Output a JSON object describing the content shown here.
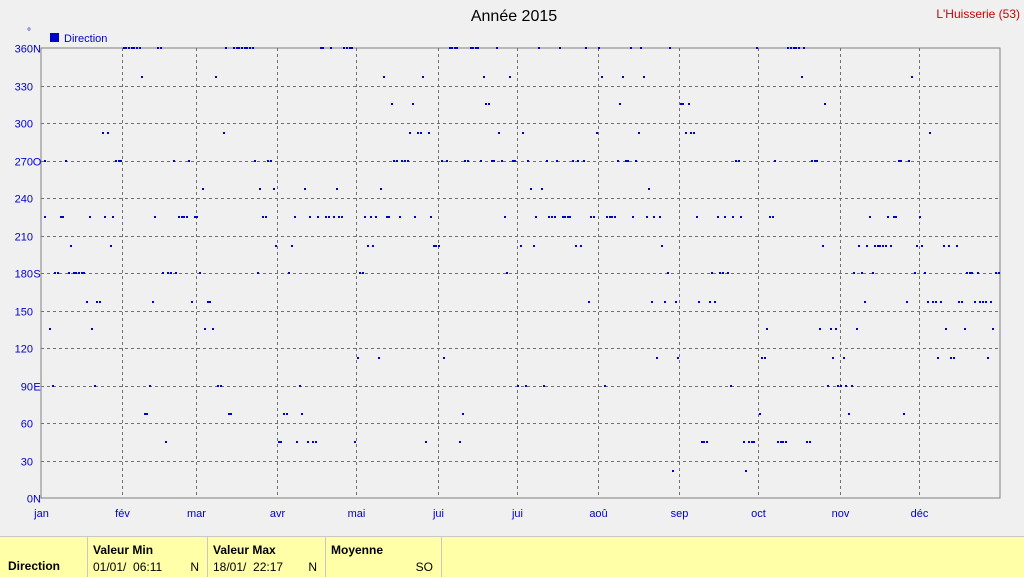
{
  "chart_data": {
    "type": "scatter",
    "title": "Année 2015",
    "station": "L'Huisserie (53)",
    "ylabel_unit": "°",
    "legend": "Direction",
    "legend_position": "top-left",
    "grid": true,
    "ylim": [
      0,
      360
    ],
    "yticks": [
      {
        "v": 0,
        "label": "0",
        "dir": "N"
      },
      {
        "v": 30,
        "label": "30",
        "dir": ""
      },
      {
        "v": 60,
        "label": "60",
        "dir": ""
      },
      {
        "v": 90,
        "label": "90",
        "dir": "E"
      },
      {
        "v": 120,
        "label": "120",
        "dir": ""
      },
      {
        "v": 150,
        "label": "150",
        "dir": ""
      },
      {
        "v": 180,
        "label": "180",
        "dir": "S"
      },
      {
        "v": 210,
        "label": "210",
        "dir": ""
      },
      {
        "v": 240,
        "label": "240",
        "dir": ""
      },
      {
        "v": 270,
        "label": "270",
        "dir": "O"
      },
      {
        "v": 300,
        "label": "300",
        "dir": ""
      },
      {
        "v": 330,
        "label": "330",
        "dir": ""
      },
      {
        "v": 360,
        "label": "360",
        "dir": "N"
      }
    ],
    "xlim_days": [
      0,
      365
    ],
    "months": [
      "jan",
      "fév",
      "mar",
      "avr",
      "mai",
      "juin",
      "juil",
      "aoû",
      "sep",
      "oct",
      "nov",
      "déc"
    ],
    "month_start_days": [
      0,
      31,
      59,
      90,
      120,
      151,
      181,
      212,
      243,
      273,
      304,
      334
    ],
    "month_labels_shown": [
      "jan",
      "fév",
      "mar",
      "avr",
      "mai",
      "jui",
      "jui",
      "aoû",
      "sep",
      "oct",
      "nov",
      "déc"
    ],
    "color": "#0000cc",
    "points": [
      [
        1,
        225
      ],
      [
        1,
        270
      ],
      [
        3,
        135
      ],
      [
        4,
        90
      ],
      [
        5,
        180
      ],
      [
        6,
        180
      ],
      [
        7,
        225
      ],
      [
        8,
        225
      ],
      [
        9,
        270
      ],
      [
        10,
        180
      ],
      [
        11,
        202
      ],
      [
        12,
        180
      ],
      [
        13,
        180
      ],
      [
        14,
        180
      ],
      [
        15,
        180
      ],
      [
        16,
        180
      ],
      [
        17,
        157
      ],
      [
        18,
        225
      ],
      [
        19,
        135
      ],
      [
        20,
        90
      ],
      [
        21,
        157
      ],
      [
        22,
        157
      ],
      [
        23,
        292
      ],
      [
        24,
        225
      ],
      [
        25,
        292
      ],
      [
        26,
        202
      ],
      [
        27,
        225
      ],
      [
        28,
        270
      ],
      [
        29,
        270
      ],
      [
        30,
        270
      ],
      [
        31,
        360
      ],
      [
        32,
        360
      ],
      [
        33,
        360
      ],
      [
        34,
        360
      ],
      [
        35,
        360
      ],
      [
        36,
        360
      ],
      [
        37,
        360
      ],
      [
        38,
        337
      ],
      [
        39,
        67
      ],
      [
        40,
        67
      ],
      [
        41,
        90
      ],
      [
        42,
        157
      ],
      [
        43,
        225
      ],
      [
        44,
        360
      ],
      [
        45,
        360
      ],
      [
        46,
        180
      ],
      [
        47,
        45
      ],
      [
        48,
        180
      ],
      [
        49,
        180
      ],
      [
        50,
        270
      ],
      [
        51,
        180
      ],
      [
        52,
        225
      ],
      [
        53,
        225
      ],
      [
        54,
        225
      ],
      [
        55,
        225
      ],
      [
        56,
        270
      ],
      [
        57,
        157
      ],
      [
        58,
        225
      ],
      [
        59,
        225
      ],
      [
        60,
        180
      ],
      [
        61,
        247
      ],
      [
        62,
        135
      ],
      [
        63,
        157
      ],
      [
        64,
        157
      ],
      [
        65,
        135
      ],
      [
        66,
        337
      ],
      [
        67,
        90
      ],
      [
        68,
        90
      ],
      [
        69,
        292
      ],
      [
        70,
        360
      ],
      [
        71,
        67
      ],
      [
        72,
        67
      ],
      [
        73,
        360
      ],
      [
        74,
        360
      ],
      [
        75,
        360
      ],
      [
        76,
        360
      ],
      [
        77,
        360
      ],
      [
        78,
        360
      ],
      [
        79,
        360
      ],
      [
        80,
        360
      ],
      [
        81,
        270
      ],
      [
        82,
        180
      ],
      [
        83,
        247
      ],
      [
        84,
        225
      ],
      [
        85,
        225
      ],
      [
        86,
        270
      ],
      [
        87,
        270
      ],
      [
        88,
        247
      ],
      [
        89,
        202
      ],
      [
        90,
        45
      ],
      [
        91,
        45
      ],
      [
        92,
        67
      ],
      [
        93,
        67
      ],
      [
        94,
        180
      ],
      [
        95,
        202
      ],
      [
        96,
        225
      ],
      [
        97,
        45
      ],
      [
        98,
        90
      ],
      [
        99,
        67
      ],
      [
        100,
        247
      ],
      [
        101,
        45
      ],
      [
        102,
        225
      ],
      [
        103,
        45
      ],
      [
        104,
        45
      ],
      [
        105,
        225
      ],
      [
        106,
        360
      ],
      [
        107,
        360
      ],
      [
        108,
        225
      ],
      [
        109,
        225
      ],
      [
        110,
        360
      ],
      [
        111,
        225
      ],
      [
        112,
        247
      ],
      [
        113,
        225
      ],
      [
        114,
        225
      ],
      [
        115,
        360
      ],
      [
        116,
        360
      ],
      [
        117,
        360
      ],
      [
        118,
        360
      ],
      [
        119,
        45
      ],
      [
        120,
        112
      ],
      [
        121,
        180
      ],
      [
        122,
        180
      ],
      [
        123,
        225
      ],
      [
        124,
        202
      ],
      [
        125,
        225
      ],
      [
        126,
        202
      ],
      [
        127,
        225
      ],
      [
        128,
        112
      ],
      [
        129,
        247
      ],
      [
        130,
        337
      ],
      [
        131,
        225
      ],
      [
        132,
        225
      ],
      [
        133,
        315
      ],
      [
        134,
        270
      ],
      [
        135,
        270
      ],
      [
        136,
        225
      ],
      [
        137,
        270
      ],
      [
        138,
        270
      ],
      [
        139,
        270
      ],
      [
        140,
        292
      ],
      [
        141,
        315
      ],
      [
        142,
        225
      ],
      [
        143,
        292
      ],
      [
        144,
        292
      ],
      [
        145,
        337
      ],
      [
        146,
        45
      ],
      [
        147,
        292
      ],
      [
        148,
        225
      ],
      [
        149,
        202
      ],
      [
        150,
        202
      ],
      [
        151,
        202
      ],
      [
        152,
        270
      ],
      [
        153,
        112
      ],
      [
        154,
        270
      ],
      [
        155,
        360
      ],
      [
        156,
        360
      ],
      [
        157,
        360
      ],
      [
        158,
        360
      ],
      [
        159,
        45
      ],
      [
        160,
        67
      ],
      [
        161,
        270
      ],
      [
        162,
        270
      ],
      [
        163,
        360
      ],
      [
        164,
        360
      ],
      [
        165,
        360
      ],
      [
        166,
        360
      ],
      [
        167,
        270
      ],
      [
        168,
        337
      ],
      [
        169,
        315
      ],
      [
        170,
        315
      ],
      [
        171,
        270
      ],
      [
        172,
        270
      ],
      [
        173,
        360
      ],
      [
        174,
        292
      ],
      [
        175,
        270
      ],
      [
        176,
        225
      ],
      [
        177,
        180
      ],
      [
        178,
        337
      ],
      [
        179,
        270
      ],
      [
        180,
        270
      ],
      [
        181,
        90
      ],
      [
        182,
        202
      ],
      [
        183,
        292
      ],
      [
        184,
        90
      ],
      [
        185,
        270
      ],
      [
        186,
        247
      ],
      [
        187,
        202
      ],
      [
        188,
        225
      ],
      [
        189,
        360
      ],
      [
        190,
        247
      ],
      [
        191,
        90
      ],
      [
        192,
        270
      ],
      [
        193,
        225
      ],
      [
        194,
        225
      ],
      [
        195,
        225
      ],
      [
        196,
        270
      ],
      [
        197,
        360
      ],
      [
        198,
        225
      ],
      [
        199,
        225
      ],
      [
        200,
        225
      ],
      [
        201,
        225
      ],
      [
        202,
        270
      ],
      [
        203,
        202
      ],
      [
        204,
        270
      ],
      [
        205,
        202
      ],
      [
        206,
        270
      ],
      [
        207,
        360
      ],
      [
        208,
        157
      ],
      [
        209,
        225
      ],
      [
        210,
        225
      ],
      [
        211,
        292
      ],
      [
        212,
        360
      ],
      [
        213,
        337
      ],
      [
        214,
        90
      ],
      [
        215,
        225
      ],
      [
        216,
        225
      ],
      [
        217,
        225
      ],
      [
        218,
        225
      ],
      [
        219,
        270
      ],
      [
        220,
        315
      ],
      [
        221,
        337
      ],
      [
        222,
        270
      ],
      [
        223,
        270
      ],
      [
        224,
        360
      ],
      [
        225,
        225
      ],
      [
        226,
        270
      ],
      [
        227,
        292
      ],
      [
        228,
        360
      ],
      [
        229,
        337
      ],
      [
        230,
        225
      ],
      [
        231,
        247
      ],
      [
        232,
        157
      ],
      [
        233,
        225
      ],
      [
        234,
        112
      ],
      [
        235,
        225
      ],
      [
        236,
        202
      ],
      [
        237,
        157
      ],
      [
        238,
        180
      ],
      [
        239,
        360
      ],
      [
        240,
        22
      ],
      [
        241,
        157
      ],
      [
        242,
        112
      ],
      [
        243,
        315
      ],
      [
        244,
        315
      ],
      [
        245,
        292
      ],
      [
        246,
        315
      ],
      [
        247,
        292
      ],
      [
        248,
        292
      ],
      [
        249,
        225
      ],
      [
        250,
        157
      ],
      [
        251,
        45
      ],
      [
        252,
        45
      ],
      [
        253,
        45
      ],
      [
        254,
        157
      ],
      [
        255,
        180
      ],
      [
        256,
        157
      ],
      [
        257,
        225
      ],
      [
        258,
        180
      ],
      [
        259,
        180
      ],
      [
        260,
        225
      ],
      [
        261,
        180
      ],
      [
        262,
        90
      ],
      [
        263,
        225
      ],
      [
        264,
        270
      ],
      [
        265,
        270
      ],
      [
        266,
        225
      ],
      [
        267,
        45
      ],
      [
        268,
        22
      ],
      [
        269,
        45
      ],
      [
        270,
        45
      ],
      [
        271,
        45
      ],
      [
        272,
        360
      ],
      [
        273,
        67
      ],
      [
        274,
        112
      ],
      [
        275,
        112
      ],
      [
        276,
        135
      ],
      [
        277,
        225
      ],
      [
        278,
        225
      ],
      [
        279,
        270
      ],
      [
        280,
        45
      ],
      [
        281,
        45
      ],
      [
        282,
        45
      ],
      [
        283,
        45
      ],
      [
        284,
        360
      ],
      [
        285,
        360
      ],
      [
        286,
        360
      ],
      [
        287,
        360
      ],
      [
        288,
        360
      ],
      [
        289,
        337
      ],
      [
        290,
        360
      ],
      [
        291,
        45
      ],
      [
        292,
        45
      ],
      [
        293,
        270
      ],
      [
        294,
        270
      ],
      [
        295,
        270
      ],
      [
        296,
        135
      ],
      [
        297,
        202
      ],
      [
        298,
        315
      ],
      [
        299,
        90
      ],
      [
        300,
        135
      ],
      [
        301,
        112
      ],
      [
        302,
        135
      ],
      [
        303,
        90
      ],
      [
        304,
        90
      ],
      [
        305,
        112
      ],
      [
        306,
        90
      ],
      [
        307,
        67
      ],
      [
        308,
        90
      ],
      [
        309,
        180
      ],
      [
        310,
        135
      ],
      [
        311,
        202
      ],
      [
        312,
        180
      ],
      [
        313,
        157
      ],
      [
        314,
        202
      ],
      [
        315,
        225
      ],
      [
        316,
        180
      ],
      [
        317,
        202
      ],
      [
        318,
        202
      ],
      [
        319,
        202
      ],
      [
        320,
        202
      ],
      [
        321,
        202
      ],
      [
        322,
        225
      ],
      [
        323,
        202
      ],
      [
        324,
        225
      ],
      [
        325,
        225
      ],
      [
        326,
        270
      ],
      [
        327,
        270
      ],
      [
        328,
        67
      ],
      [
        329,
        157
      ],
      [
        330,
        270
      ],
      [
        331,
        337
      ],
      [
        332,
        180
      ],
      [
        333,
        202
      ],
      [
        334,
        225
      ],
      [
        335,
        202
      ],
      [
        336,
        180
      ],
      [
        337,
        157
      ],
      [
        338,
        292
      ],
      [
        339,
        157
      ],
      [
        340,
        157
      ],
      [
        341,
        112
      ],
      [
        342,
        157
      ],
      [
        343,
        202
      ],
      [
        344,
        135
      ],
      [
        345,
        202
      ],
      [
        346,
        112
      ],
      [
        347,
        112
      ],
      [
        348,
        202
      ],
      [
        349,
        157
      ],
      [
        350,
        157
      ],
      [
        351,
        135
      ],
      [
        352,
        180
      ],
      [
        353,
        180
      ],
      [
        354,
        180
      ],
      [
        355,
        157
      ],
      [
        356,
        180
      ],
      [
        357,
        157
      ],
      [
        358,
        157
      ],
      [
        359,
        157
      ],
      [
        360,
        112
      ],
      [
        361,
        157
      ],
      [
        362,
        135
      ],
      [
        363,
        180
      ],
      [
        364,
        180
      ]
    ]
  },
  "footer": {
    "series_label": "Direction",
    "min": {
      "header": "Valeur Min",
      "date_time": "01/01/  06:11",
      "suffix": "N"
    },
    "max": {
      "header": "Valeur Max",
      "date_time": "18/01/  22:17",
      "suffix": "N"
    },
    "avg": {
      "header": "Moyenne",
      "value": "SO"
    }
  }
}
